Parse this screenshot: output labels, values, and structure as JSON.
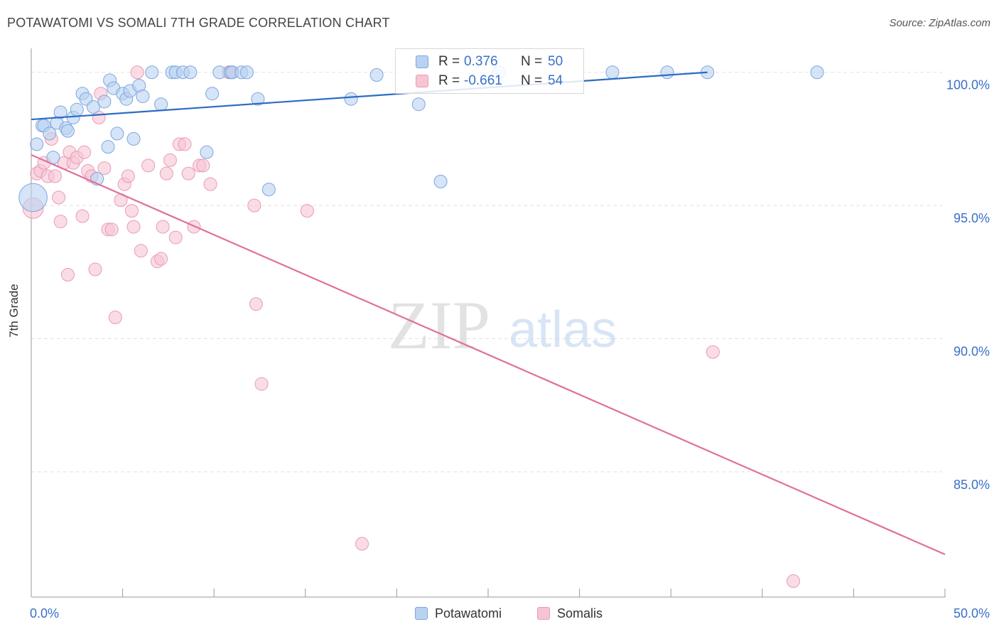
{
  "title": "POTAWATOMI VS SOMALI 7TH GRADE CORRELATION CHART",
  "source": "Source: ZipAtlas.com",
  "watermark": {
    "zip": "ZIP",
    "atlas": "atlas"
  },
  "colors": {
    "blue_fill": "#b9d2f2",
    "blue_stroke": "#7ea6dc",
    "blue_line": "#2c6cc4",
    "pink_fill": "#f6c5d4",
    "pink_stroke": "#e99bb4",
    "pink_line": "#e0709a",
    "tick_label": "#3a6fc9",
    "grid": "#e2e2e2"
  },
  "stats": [
    {
      "r_label": "R =",
      "r_value": "0.376",
      "n_label": "N =",
      "n_value": "50"
    },
    {
      "r_label": "R =",
      "r_value": "-0.661",
      "n_label": "N =",
      "n_value": "54"
    }
  ],
  "legend": [
    "Potawatomi",
    "Somalis"
  ],
  "chart_data": {
    "type": "scatter",
    "title": "POTAWATOMI VS SOMALI 7TH GRADE CORRELATION CHART",
    "xlabel": "",
    "ylabel": "7th Grade",
    "xlim": [
      0,
      50
    ],
    "ylim": [
      80.3,
      100.9
    ],
    "x_tick_labels": [
      "0.0%",
      "50.0%"
    ],
    "y_ticks": [
      100,
      95,
      90,
      85
    ],
    "y_tick_labels": [
      "100.0%",
      "95.0%",
      "90.0%",
      "85.0%"
    ],
    "grid": true,
    "legend_position": "bottom-center",
    "series": [
      {
        "name": "Potawatomi",
        "r": 0.376,
        "n": 50,
        "trend": {
          "x": [
            0,
            37.0
          ],
          "y": [
            98.23,
            100.0
          ]
        },
        "points": [
          [
            0.1,
            95.3,
            2.2
          ],
          [
            0.3,
            97.3,
            1
          ],
          [
            0.6,
            98.0,
            1
          ],
          [
            0.7,
            98.0,
            1
          ],
          [
            1.0,
            97.7,
            1
          ],
          [
            1.2,
            96.8,
            1
          ],
          [
            1.4,
            98.1,
            1
          ],
          [
            1.6,
            98.5,
            1
          ],
          [
            1.9,
            97.9,
            1
          ],
          [
            2.0,
            97.8,
            1
          ],
          [
            2.3,
            98.3,
            1
          ],
          [
            2.5,
            98.6,
            1
          ],
          [
            2.8,
            99.2,
            1
          ],
          [
            3.0,
            99.0,
            1
          ],
          [
            3.4,
            98.7,
            1
          ],
          [
            3.6,
            96.0,
            1
          ],
          [
            4.0,
            98.9,
            1
          ],
          [
            4.2,
            97.2,
            1
          ],
          [
            4.3,
            99.7,
            1
          ],
          [
            4.5,
            99.4,
            1
          ],
          [
            4.7,
            97.7,
            1
          ],
          [
            5.0,
            99.2,
            1
          ],
          [
            5.2,
            99.0,
            1
          ],
          [
            5.4,
            99.3,
            1
          ],
          [
            5.6,
            97.5,
            1
          ],
          [
            5.9,
            99.5,
            1
          ],
          [
            6.1,
            99.1,
            1
          ],
          [
            6.6,
            100.0,
            1
          ],
          [
            7.1,
            98.8,
            1
          ],
          [
            7.7,
            100.0,
            1
          ],
          [
            7.9,
            100.0,
            1
          ],
          [
            8.3,
            100.0,
            1
          ],
          [
            8.7,
            100.0,
            1
          ],
          [
            9.6,
            97.0,
            1
          ],
          [
            9.9,
            99.2,
            1
          ],
          [
            10.3,
            100.0,
            1
          ],
          [
            10.9,
            100.0,
            1
          ],
          [
            11.0,
            100.0,
            1
          ],
          [
            11.5,
            100.0,
            1
          ],
          [
            11.8,
            100.0,
            1
          ],
          [
            12.4,
            99.0,
            1
          ],
          [
            13.0,
            95.6,
            1
          ],
          [
            17.5,
            99.0,
            1
          ],
          [
            18.9,
            99.9,
            1
          ],
          [
            21.2,
            98.8,
            1
          ],
          [
            22.4,
            95.9,
            1
          ],
          [
            25.6,
            100.0,
            1
          ],
          [
            31.8,
            100.0,
            1
          ],
          [
            34.8,
            100.0,
            1
          ],
          [
            37.0,
            100.0,
            1
          ],
          [
            43.0,
            100.0,
            1
          ]
        ]
      },
      {
        "name": "Somalis",
        "r": -0.661,
        "n": 54,
        "trend": {
          "x": [
            0,
            50
          ],
          "y": [
            96.9,
            81.9
          ]
        },
        "points": [
          [
            0.1,
            94.9,
            1.6
          ],
          [
            0.3,
            96.2,
            1
          ],
          [
            0.5,
            96.3,
            1
          ],
          [
            0.7,
            96.6,
            1
          ],
          [
            0.9,
            96.1,
            1
          ],
          [
            1.1,
            97.5,
            1
          ],
          [
            1.3,
            96.1,
            1
          ],
          [
            1.5,
            95.3,
            1
          ],
          [
            1.6,
            94.4,
            1
          ],
          [
            1.8,
            96.6,
            1
          ],
          [
            2.0,
            92.4,
            1
          ],
          [
            2.1,
            97.0,
            1
          ],
          [
            2.3,
            96.6,
            1
          ],
          [
            2.5,
            96.8,
            1
          ],
          [
            2.8,
            94.6,
            1
          ],
          [
            2.9,
            97.0,
            1
          ],
          [
            3.1,
            96.3,
            1
          ],
          [
            3.3,
            96.1,
            1
          ],
          [
            3.5,
            92.6,
            1
          ],
          [
            3.7,
            98.3,
            1
          ],
          [
            3.8,
            99.2,
            1
          ],
          [
            4.0,
            96.4,
            1
          ],
          [
            4.2,
            94.1,
            1
          ],
          [
            4.4,
            94.1,
            1
          ],
          [
            4.6,
            90.8,
            1
          ],
          [
            4.9,
            95.2,
            1
          ],
          [
            5.1,
            95.8,
            1
          ],
          [
            5.3,
            96.1,
            1
          ],
          [
            5.5,
            94.8,
            1
          ],
          [
            5.6,
            94.2,
            1
          ],
          [
            5.8,
            100.0,
            1
          ],
          [
            6.0,
            93.3,
            1
          ],
          [
            6.4,
            96.5,
            1
          ],
          [
            6.9,
            92.9,
            1
          ],
          [
            7.1,
            93.0,
            1
          ],
          [
            7.2,
            94.2,
            1
          ],
          [
            7.4,
            96.2,
            1
          ],
          [
            7.6,
            96.7,
            1
          ],
          [
            7.9,
            93.8,
            1
          ],
          [
            8.1,
            97.3,
            1
          ],
          [
            8.4,
            97.3,
            1
          ],
          [
            8.6,
            96.2,
            1
          ],
          [
            8.9,
            94.2,
            1
          ],
          [
            9.2,
            96.5,
            1
          ],
          [
            9.4,
            96.5,
            1
          ],
          [
            9.8,
            95.8,
            1
          ],
          [
            10.8,
            100.0,
            1
          ],
          [
            11.0,
            100.0,
            1
          ],
          [
            12.2,
            95.0,
            1
          ],
          [
            12.3,
            91.3,
            1
          ],
          [
            12.6,
            88.3,
            1
          ],
          [
            15.1,
            94.8,
            1
          ],
          [
            18.1,
            82.3,
            1
          ],
          [
            37.3,
            89.5,
            1
          ],
          [
            41.7,
            80.9,
            1
          ]
        ]
      }
    ]
  }
}
